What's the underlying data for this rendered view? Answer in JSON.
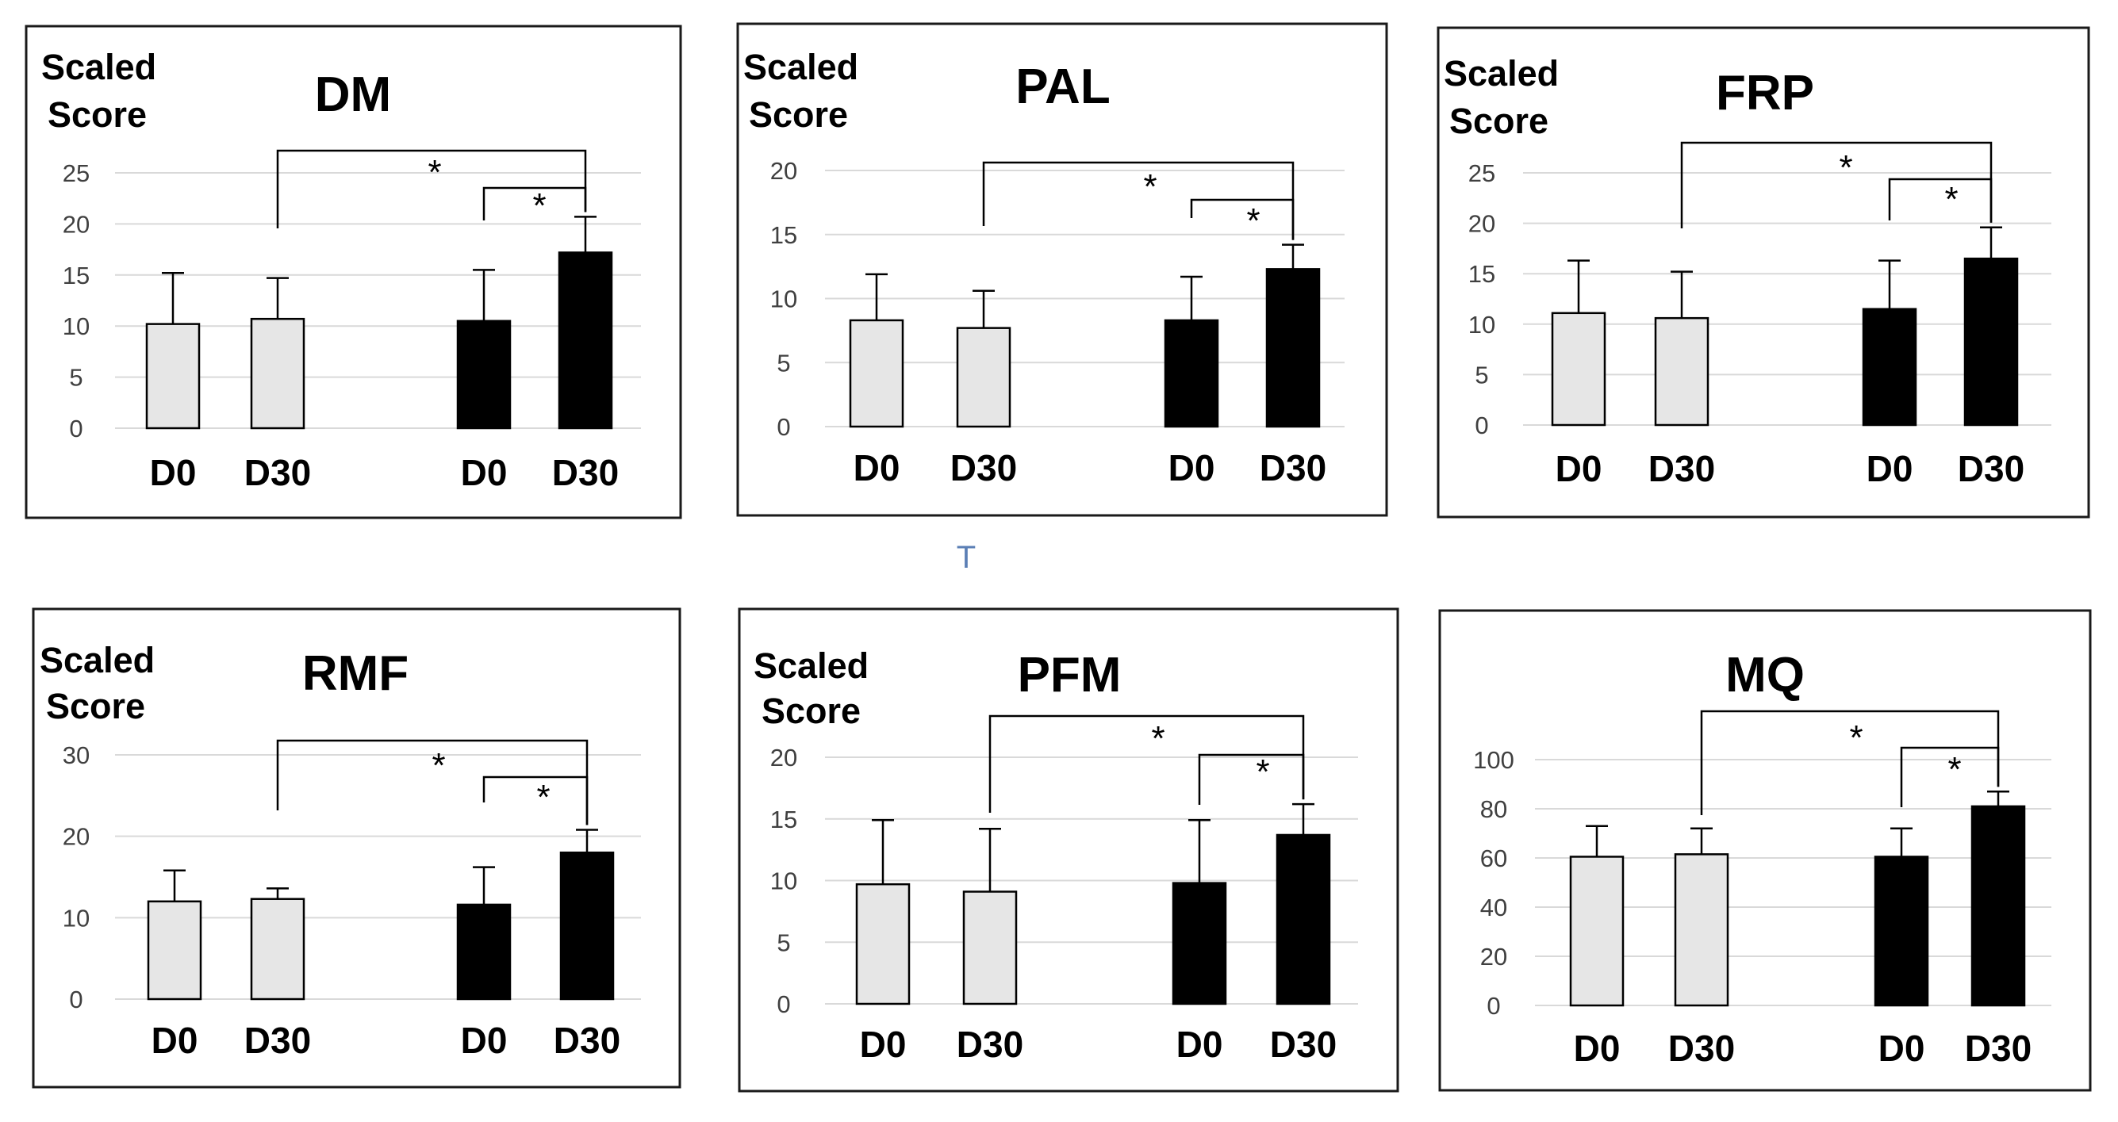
{
  "colors": {
    "control": "#e6e6e6",
    "treatment": "#000000"
  },
  "stray_marker": "T",
  "chart_data": [
    {
      "type": "bar",
      "title": "DM",
      "ylabel": "Scaled Score",
      "categories": [
        "D0",
        "D30",
        "D0",
        "D30"
      ],
      "series": [
        {
          "values": [
            10.2,
            10.7,
            null,
            null
          ],
          "errors": [
            5.0,
            4.0,
            null,
            null
          ],
          "color": "#e6e6e6"
        },
        {
          "values": [
            null,
            null,
            10.5,
            17.2
          ],
          "errors": [
            null,
            null,
            5.0,
            3.5
          ],
          "color": "#000000"
        }
      ],
      "ylim": [
        0,
        25
      ],
      "yticks": [
        0,
        5,
        10,
        15,
        20,
        25
      ],
      "grid": true,
      "significance": [
        {
          "from": 1,
          "to": 3,
          "label": "*"
        },
        {
          "from": 2,
          "to": 3,
          "label": "*"
        }
      ]
    },
    {
      "type": "bar",
      "title": "PAL",
      "ylabel": "Scaled Score",
      "categories": [
        "D0",
        "D30",
        "D0",
        "D30"
      ],
      "series": [
        {
          "values": [
            8.3,
            7.7,
            null,
            null
          ],
          "errors": [
            3.6,
            2.9,
            null,
            null
          ],
          "color": "#e6e6e6"
        },
        {
          "values": [
            null,
            null,
            8.3,
            12.3
          ],
          "errors": [
            null,
            null,
            3.4,
            1.9
          ],
          "color": "#000000"
        }
      ],
      "ylim": [
        0,
        20
      ],
      "yticks": [
        0,
        5,
        10,
        15,
        20
      ],
      "grid": true,
      "significance": [
        {
          "from": 1,
          "to": 3,
          "label": "*"
        },
        {
          "from": 2,
          "to": 3,
          "label": "*"
        }
      ]
    },
    {
      "type": "bar",
      "title": "FRP",
      "ylabel": "Scaled Score",
      "categories": [
        "D0",
        "D30",
        "D0",
        "D30"
      ],
      "series": [
        {
          "values": [
            11.1,
            10.6,
            null,
            null
          ],
          "errors": [
            5.2,
            4.6,
            null,
            null
          ],
          "color": "#e6e6e6"
        },
        {
          "values": [
            null,
            null,
            11.5,
            16.5
          ],
          "errors": [
            null,
            null,
            4.8,
            3.1
          ],
          "color": "#000000"
        }
      ],
      "ylim": [
        0,
        25
      ],
      "yticks": [
        0,
        5,
        10,
        15,
        20,
        25
      ],
      "grid": true,
      "significance": [
        {
          "from": 1,
          "to": 3,
          "label": "*"
        },
        {
          "from": 2,
          "to": 3,
          "label": "*"
        }
      ]
    },
    {
      "type": "bar",
      "title": "RMF",
      "ylabel": "Scaled Score",
      "categories": [
        "D0",
        "D30",
        "D0",
        "D30"
      ],
      "series": [
        {
          "values": [
            12.0,
            12.3,
            null,
            null
          ],
          "errors": [
            3.8,
            1.3,
            null,
            null
          ],
          "color": "#e6e6e6"
        },
        {
          "values": [
            null,
            null,
            11.6,
            18.0
          ],
          "errors": [
            null,
            null,
            4.6,
            2.8
          ],
          "color": "#000000"
        }
      ],
      "ylim": [
        0,
        30
      ],
      "yticks": [
        0,
        10,
        20,
        30
      ],
      "grid": true,
      "significance": [
        {
          "from": 1,
          "to": 3,
          "label": "*"
        },
        {
          "from": 2,
          "to": 3,
          "label": "*"
        }
      ]
    },
    {
      "type": "bar",
      "title": "PFM",
      "ylabel": "Scaled Score",
      "categories": [
        "D0",
        "D30",
        "D0",
        "D30"
      ],
      "series": [
        {
          "values": [
            9.7,
            9.1,
            null,
            null
          ],
          "errors": [
            5.2,
            5.1,
            null,
            null
          ],
          "color": "#e6e6e6"
        },
        {
          "values": [
            null,
            null,
            9.8,
            13.7
          ],
          "errors": [
            null,
            null,
            5.1,
            2.5
          ],
          "color": "#000000"
        }
      ],
      "ylim": [
        0,
        20
      ],
      "yticks": [
        0,
        5,
        10,
        15,
        20
      ],
      "grid": true,
      "significance": [
        {
          "from": 1,
          "to": 3,
          "label": "*"
        },
        {
          "from": 2,
          "to": 3,
          "label": "*"
        }
      ]
    },
    {
      "type": "bar",
      "title": "MQ",
      "categories": [
        "D0",
        "D30",
        "D0",
        "D30"
      ],
      "series": [
        {
          "values": [
            60.5,
            61.5,
            null,
            null
          ],
          "errors": [
            12.5,
            10.5,
            null,
            null
          ],
          "color": "#e6e6e6"
        },
        {
          "values": [
            null,
            null,
            60.5,
            81.0
          ],
          "errors": [
            null,
            null,
            11.5,
            6.0
          ],
          "color": "#000000"
        }
      ],
      "ylim": [
        0,
        100
      ],
      "yticks": [
        0,
        20,
        40,
        60,
        80,
        100
      ],
      "grid": true,
      "significance": [
        {
          "from": 1,
          "to": 3,
          "label": "*"
        },
        {
          "from": 2,
          "to": 3,
          "label": "*"
        }
      ]
    }
  ]
}
